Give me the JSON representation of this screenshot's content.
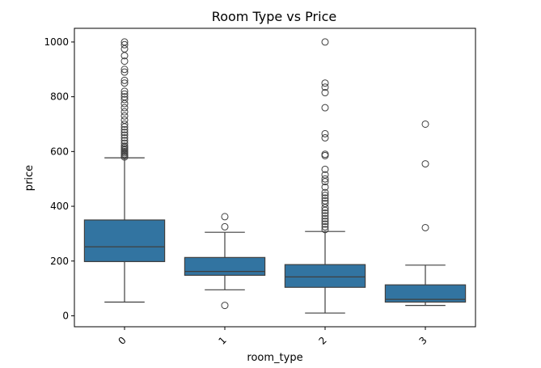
{
  "chart_data": {
    "type": "box",
    "title": "Room Type vs Price",
    "xlabel": "room_type",
    "ylabel": "price",
    "categories": [
      "0",
      "1",
      "2",
      "3"
    ],
    "y_ticks": [
      0,
      200,
      400,
      600,
      800,
      1000
    ],
    "ylim": [
      -40,
      1050
    ],
    "grid": false,
    "box_color": "#3274a1",
    "boxes": [
      {
        "category": "0",
        "whisker_low": 50,
        "q1": 198,
        "median": 252,
        "q3": 350,
        "whisker_high": 577,
        "outliers": [
          580,
          585,
          590,
          595,
          600,
          605,
          610,
          615,
          620,
          630,
          640,
          650,
          660,
          670,
          680,
          690,
          700,
          715,
          730,
          745,
          760,
          775,
          790,
          800,
          810,
          820,
          850,
          860,
          890,
          900,
          930,
          950,
          975,
          990,
          1000
        ]
      },
      {
        "category": "1",
        "whisker_low": 95,
        "q1": 148,
        "median": 162,
        "q3": 213,
        "whisker_high": 305,
        "outliers": [
          38,
          325,
          362
        ]
      },
      {
        "category": "2",
        "whisker_low": 10,
        "q1": 104,
        "median": 142,
        "q3": 187,
        "whisker_high": 308,
        "outliers": [
          315,
          325,
          335,
          345,
          355,
          365,
          375,
          385,
          395,
          410,
          420,
          430,
          440,
          450,
          470,
          490,
          500,
          515,
          535,
          585,
          590,
          650,
          665,
          760,
          815,
          835,
          850,
          1000
        ]
      },
      {
        "category": "3",
        "whisker_low": 38,
        "q1": 50,
        "median": 60,
        "q3": 113,
        "whisker_high": 185,
        "outliers": [
          322,
          555,
          700
        ]
      }
    ]
  }
}
